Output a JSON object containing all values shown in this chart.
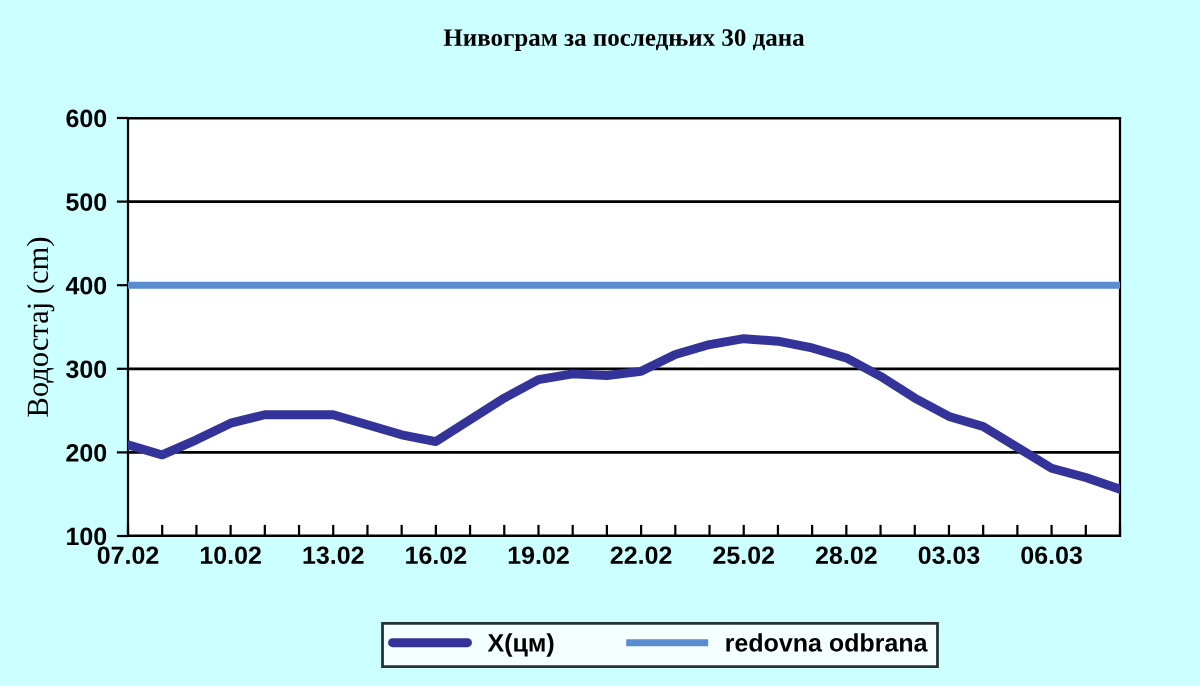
{
  "chart_data": {
    "type": "line",
    "title": "Нивограм за последњих 30 дана",
    "ylabel": "Водостај (cm)",
    "categories": [
      "07.02",
      null,
      null,
      "10.02",
      null,
      null,
      "13.02",
      null,
      null,
      "16.02",
      null,
      null,
      "19.02",
      null,
      null,
      "22.02",
      null,
      null,
      "25.02",
      null,
      null,
      "28.02",
      null,
      null,
      "03.03",
      null,
      null,
      "06.03",
      null,
      null
    ],
    "series": [
      {
        "name": "X(цм)",
        "color": "#333399",
        "values": [
          209,
          197,
          215,
          235,
          245,
          245,
          245,
          233,
          221,
          213,
          239,
          265,
          287,
          294,
          292,
          297,
          317,
          329,
          336,
          333,
          325,
          313,
          291,
          265,
          243,
          231,
          206,
          181,
          170,
          156
        ]
      }
    ],
    "ref_lines": [
      {
        "axis": "y",
        "value": 400,
        "label": "redovna odbrana",
        "color": "#5b8bd0"
      }
    ],
    "ylim": [
      100,
      600
    ],
    "yticks": [
      100,
      200,
      300,
      400,
      500,
      600
    ],
    "grid": "y",
    "legend": "bottom",
    "marker": "none",
    "line_style": "solid"
  }
}
